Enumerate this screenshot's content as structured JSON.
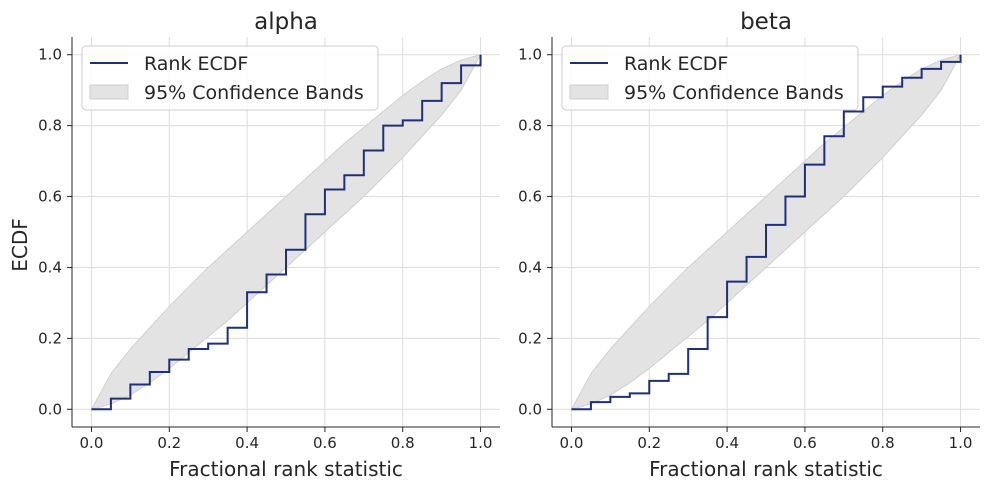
{
  "colors": {
    "ecdf_line": "#1f2f7a",
    "band_fill": "#e3e3e3",
    "band_edge": "#cfcfcf",
    "grid": "#dcdcdc",
    "axis": "#262626"
  },
  "chart_data": [
    {
      "type": "line",
      "title": "alpha",
      "xlabel": "Fractional rank statistic",
      "ylabel": "ECDF",
      "xlim": [
        -0.05,
        1.05
      ],
      "ylim": [
        -0.05,
        1.05
      ],
      "xticks": [
        "0.0",
        "0.2",
        "0.4",
        "0.6",
        "0.8",
        "1.0"
      ],
      "yticks": [
        "0.0",
        "0.2",
        "0.4",
        "0.6",
        "0.8",
        "1.0"
      ],
      "grid": true,
      "legend_position": "top-left",
      "legend": [
        "Rank ECDF",
        "95% Confidence Bands"
      ],
      "series": [
        {
          "name": "Rank ECDF",
          "x": [
            0.0,
            0.05,
            0.1,
            0.15,
            0.2,
            0.25,
            0.3,
            0.35,
            0.4,
            0.45,
            0.5,
            0.55,
            0.6,
            0.65,
            0.7,
            0.75,
            0.8,
            0.85,
            0.9,
            0.95,
            1.0
          ],
          "y": [
            0.0,
            0.03,
            0.07,
            0.105,
            0.14,
            0.17,
            0.185,
            0.23,
            0.33,
            0.38,
            0.45,
            0.55,
            0.62,
            0.66,
            0.73,
            0.8,
            0.815,
            0.87,
            0.92,
            0.97,
            1.0
          ]
        }
      ],
      "bands": {
        "name": "95% Confidence Bands",
        "x": [
          0.0,
          0.05,
          0.1,
          0.15,
          0.2,
          0.25,
          0.3,
          0.35,
          0.4,
          0.45,
          0.5,
          0.55,
          0.6,
          0.65,
          0.7,
          0.75,
          0.8,
          0.85,
          0.9,
          0.95,
          1.0
        ],
        "lower": [
          0.0,
          0.015,
          0.04,
          0.075,
          0.115,
          0.16,
          0.205,
          0.25,
          0.3,
          0.35,
          0.4,
          0.45,
          0.5,
          0.55,
          0.6,
          0.655,
          0.71,
          0.77,
          0.83,
          0.9,
          1.0
        ],
        "upper": [
          0.0,
          0.1,
          0.17,
          0.23,
          0.29,
          0.345,
          0.4,
          0.45,
          0.5,
          0.55,
          0.6,
          0.65,
          0.7,
          0.75,
          0.795,
          0.84,
          0.885,
          0.925,
          0.96,
          0.985,
          1.0
        ]
      }
    },
    {
      "type": "line",
      "title": "beta",
      "xlabel": "Fractional rank statistic",
      "ylabel": "",
      "xlim": [
        -0.05,
        1.05
      ],
      "ylim": [
        -0.05,
        1.05
      ],
      "xticks": [
        "0.0",
        "0.2",
        "0.4",
        "0.6",
        "0.8",
        "1.0"
      ],
      "yticks": [
        "0.0",
        "0.2",
        "0.4",
        "0.6",
        "0.8",
        "1.0"
      ],
      "grid": true,
      "legend_position": "top-left",
      "legend": [
        "Rank ECDF",
        "95% Confidence Bands"
      ],
      "series": [
        {
          "name": "Rank ECDF",
          "x": [
            0.0,
            0.05,
            0.1,
            0.15,
            0.2,
            0.25,
            0.3,
            0.35,
            0.4,
            0.45,
            0.5,
            0.55,
            0.6,
            0.65,
            0.7,
            0.75,
            0.8,
            0.85,
            0.9,
            0.95,
            1.0
          ],
          "y": [
            0.0,
            0.02,
            0.035,
            0.045,
            0.08,
            0.1,
            0.17,
            0.26,
            0.36,
            0.43,
            0.52,
            0.6,
            0.69,
            0.77,
            0.84,
            0.88,
            0.91,
            0.935,
            0.96,
            0.98,
            1.0
          ]
        }
      ],
      "bands": {
        "name": "95% Confidence Bands",
        "x": [
          0.0,
          0.05,
          0.1,
          0.15,
          0.2,
          0.25,
          0.3,
          0.35,
          0.4,
          0.45,
          0.5,
          0.55,
          0.6,
          0.65,
          0.7,
          0.75,
          0.8,
          0.85,
          0.9,
          0.95,
          1.0
        ],
        "lower": [
          0.0,
          0.015,
          0.04,
          0.075,
          0.115,
          0.16,
          0.205,
          0.25,
          0.3,
          0.35,
          0.4,
          0.45,
          0.5,
          0.55,
          0.6,
          0.655,
          0.71,
          0.77,
          0.83,
          0.9,
          1.0
        ],
        "upper": [
          0.0,
          0.1,
          0.17,
          0.23,
          0.29,
          0.345,
          0.4,
          0.45,
          0.5,
          0.55,
          0.6,
          0.65,
          0.7,
          0.75,
          0.795,
          0.84,
          0.885,
          0.925,
          0.96,
          0.985,
          1.0
        ]
      }
    }
  ]
}
